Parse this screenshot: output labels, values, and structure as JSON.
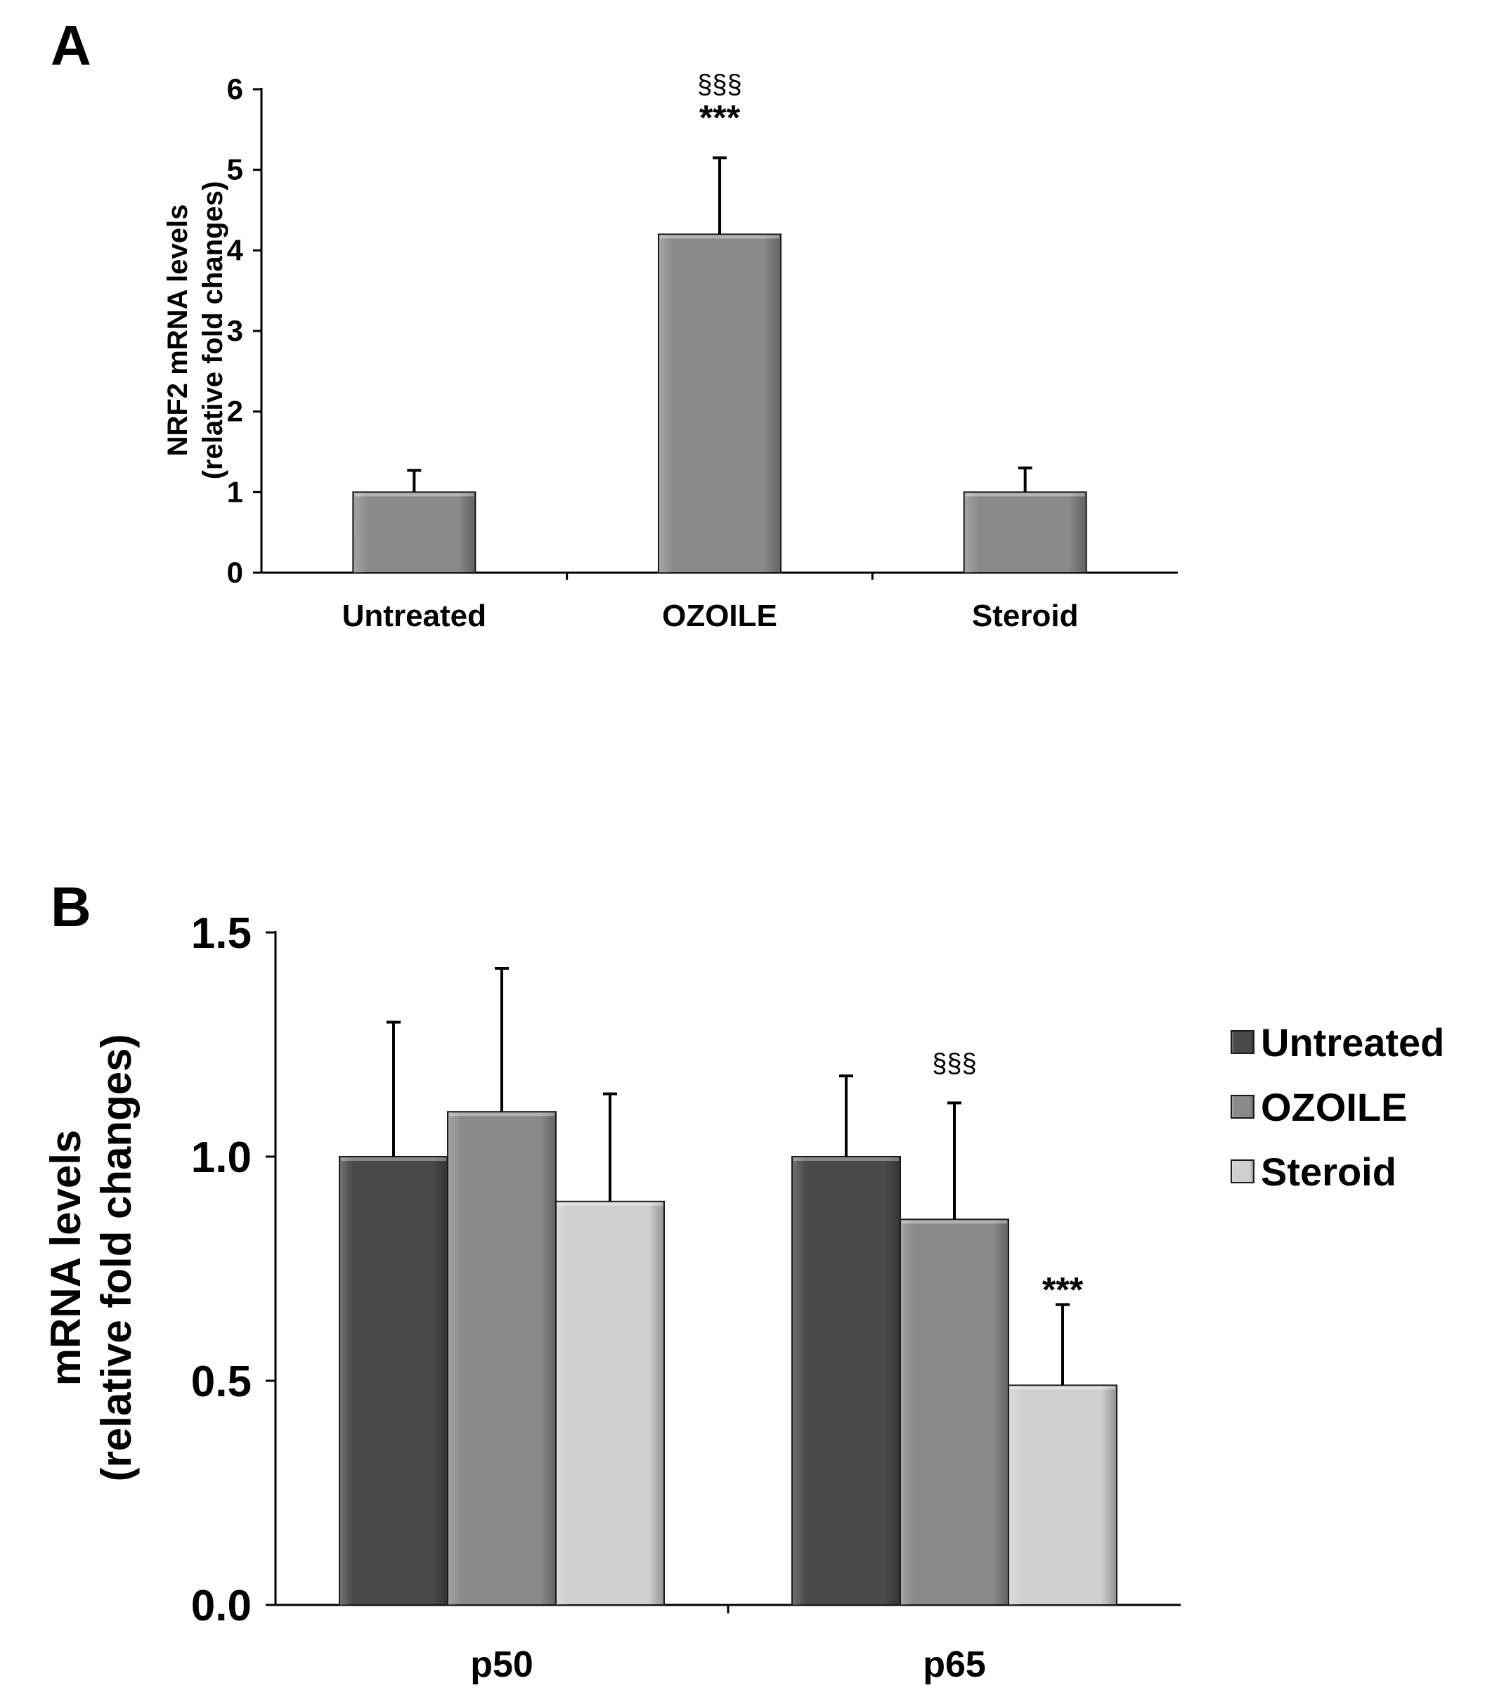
{
  "chart_data": [
    {
      "panel": "A",
      "type": "bar",
      "categories": [
        "Untreated",
        "OZOILE",
        "Steroid"
      ],
      "values": [
        1.0,
        4.2,
        1.0
      ],
      "errors": [
        0.27,
        0.95,
        0.3
      ],
      "annotations": [
        {
          "category": "OZOILE",
          "lines": [
            "§§§",
            "***"
          ]
        }
      ],
      "ylabel_lines": [
        "NRF2 mRNA levels",
        "(relative fold changes)"
      ],
      "xlabel": "",
      "ylim": [
        0,
        6
      ],
      "yticks": [
        0,
        1,
        2,
        3,
        4,
        5,
        6
      ],
      "ytick_labels": [
        "0",
        "1",
        "2",
        "3",
        "4",
        "5",
        "6"
      ],
      "bar_color": "#8a8a8a",
      "grid": false
    },
    {
      "panel": "B",
      "type": "bar",
      "categories": [
        "p50",
        "p65"
      ],
      "series": [
        {
          "name": "Untreated",
          "values": [
            1.0,
            1.0
          ],
          "errors": [
            0.3,
            0.18
          ],
          "color": "#4a4a4a"
        },
        {
          "name": "OZOILE",
          "values": [
            1.1,
            0.86
          ],
          "errors": [
            0.32,
            0.26
          ],
          "color": "#8a8a8a"
        },
        {
          "name": "Steroid",
          "values": [
            0.9,
            0.49
          ],
          "errors": [
            0.24,
            0.18
          ],
          "color": "#cfcfcf"
        }
      ],
      "annotations": [
        {
          "category": "p65",
          "series": "OZOILE",
          "text": "§§§"
        },
        {
          "category": "p65",
          "series": "Steroid",
          "text": "***"
        }
      ],
      "ylabel_lines": [
        "mRNA levels",
        "(relative fold changes)"
      ],
      "xlabel": "",
      "ylim": [
        0,
        1.5
      ],
      "yticks": [
        0,
        0.5,
        1.0,
        1.5
      ],
      "ytick_labels": [
        "0.0",
        "0.5",
        "1.0",
        "1.5"
      ],
      "legend_position": "right",
      "grid": false
    }
  ]
}
